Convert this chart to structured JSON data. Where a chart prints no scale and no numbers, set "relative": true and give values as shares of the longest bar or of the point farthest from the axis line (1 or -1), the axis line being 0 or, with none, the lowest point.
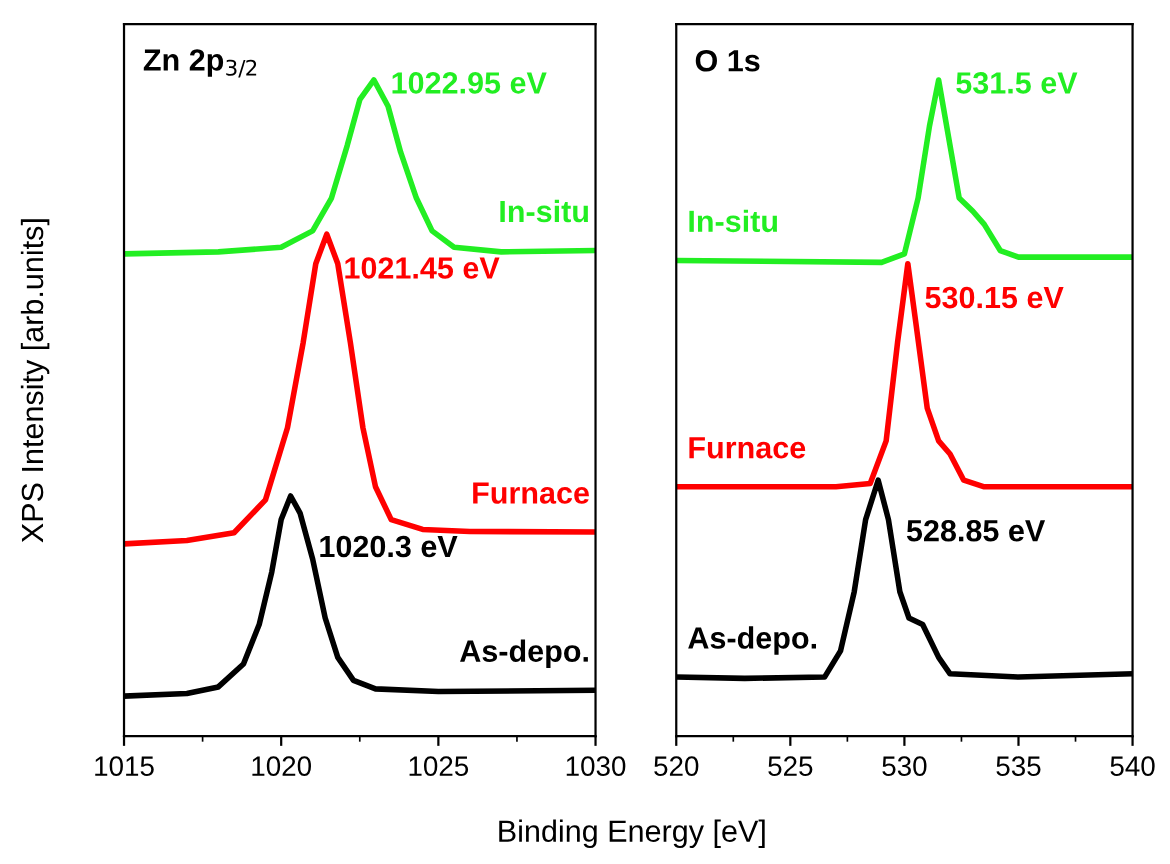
{
  "chart_data": [
    {
      "type": "line",
      "title": "Zn 2p$_{3/2}$",
      "ylabel": "XPS Intensity [arb.units]",
      "xlabel": "Binding Energy [eV]",
      "relative": true,
      "xlim": [
        1015,
        1030
      ],
      "xticks": [
        1015,
        1020,
        1025,
        1030
      ],
      "legend": false,
      "grid": false,
      "marker": "none",
      "line_style": "solid",
      "series": [
        {
          "name": "As-depo.",
          "color": "#000000",
          "x": [
            1015,
            1017,
            1018,
            1018.8,
            1019.3,
            1019.7,
            1020,
            1020.3,
            1020.6,
            1021,
            1021.4,
            1021.8,
            1022.3,
            1023,
            1025,
            1030
          ],
          "values": [
            0.061,
            0.065,
            0.075,
            0.11,
            0.17,
            0.25,
            0.33,
            0.366,
            0.34,
            0.27,
            0.18,
            0.12,
            0.085,
            0.072,
            0.068,
            0.07
          ]
        },
        {
          "name": "Furnace",
          "color": "#ff0000",
          "x": [
            1015,
            1017,
            1018.5,
            1019.5,
            1020.2,
            1020.7,
            1021.1,
            1021.45,
            1021.8,
            1022.2,
            1022.6,
            1023,
            1023.5,
            1024.5,
            1026,
            1030
          ],
          "values": [
            0.293,
            0.298,
            0.31,
            0.36,
            0.47,
            0.6,
            0.72,
            0.765,
            0.72,
            0.6,
            0.47,
            0.38,
            0.33,
            0.315,
            0.312,
            0.311
          ]
        },
        {
          "name": "In-situ",
          "color": "#22ee22",
          "x": [
            1015,
            1018,
            1020,
            1021,
            1021.6,
            1022.1,
            1022.5,
            1022.95,
            1023.4,
            1023.8,
            1024.3,
            1024.8,
            1025.5,
            1027,
            1030
          ],
          "values": [
            0.735,
            0.738,
            0.745,
            0.77,
            0.82,
            0.9,
            0.97,
            1.0,
            0.96,
            0.89,
            0.82,
            0.77,
            0.745,
            0.738,
            0.74
          ]
        }
      ],
      "annotations": [
        {
          "text": "1020.3 eV",
          "x": 1020.3,
          "y": 0.366
        },
        {
          "text": "1021.45 eV",
          "x": 1021.45,
          "y": 0.765
        },
        {
          "text": "1022.95 eV",
          "x": 1022.95,
          "y": 1.0
        }
      ]
    },
    {
      "type": "line",
      "title": "O 1s",
      "relative": true,
      "xlim": [
        520,
        540
      ],
      "xticks": [
        520,
        525,
        530,
        535,
        540
      ],
      "legend": false,
      "grid": false,
      "marker": "none",
      "line_style": "solid",
      "series": [
        {
          "name": "As-depo.",
          "color": "#000000",
          "x": [
            520,
            523,
            526.5,
            527.2,
            527.8,
            528.3,
            528.85,
            529.3,
            529.8,
            530.2,
            530.8,
            531.5,
            532,
            535,
            540
          ],
          "values": [
            0.09,
            0.088,
            0.09,
            0.13,
            0.22,
            0.33,
            0.39,
            0.33,
            0.22,
            0.18,
            0.17,
            0.12,
            0.095,
            0.09,
            0.095
          ]
        },
        {
          "name": "Furnace",
          "color": "#ff0000",
          "x": [
            520,
            527,
            528.5,
            529.2,
            529.7,
            530.15,
            530.5,
            531,
            531.5,
            532,
            532.6,
            533.5,
            540
          ],
          "values": [
            0.38,
            0.38,
            0.385,
            0.45,
            0.6,
            0.72,
            0.63,
            0.5,
            0.45,
            0.43,
            0.39,
            0.38,
            0.38
          ]
        },
        {
          "name": "In-situ",
          "color": "#22ee22",
          "x": [
            520,
            529,
            530,
            530.6,
            531.1,
            531.5,
            531.9,
            532.4,
            533,
            533.5,
            534.2,
            535,
            540
          ],
          "values": [
            0.725,
            0.722,
            0.735,
            0.82,
            0.93,
            1.0,
            0.92,
            0.82,
            0.8,
            0.78,
            0.74,
            0.73,
            0.73
          ]
        }
      ],
      "annotations": [
        {
          "text": "528.85 eV",
          "x": 528.85,
          "y": 0.39
        },
        {
          "text": "530.15 eV",
          "x": 530.15,
          "y": 0.72
        },
        {
          "text": "531.5 eV",
          "x": 531.5,
          "y": 1.0
        }
      ]
    }
  ]
}
